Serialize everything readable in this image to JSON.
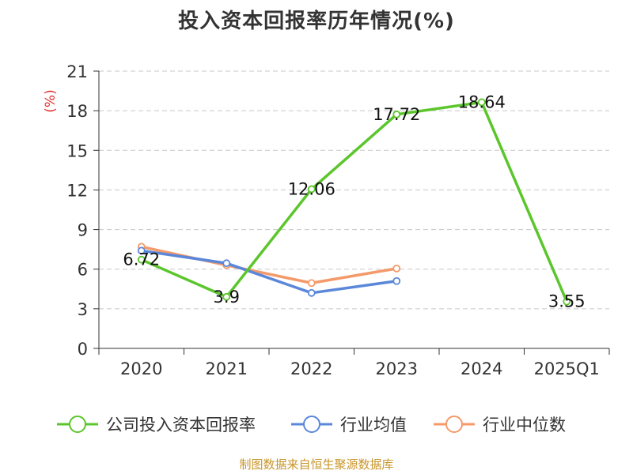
{
  "chart_data": {
    "type": "line",
    "title": "投入资本回报率历年情况(%)",
    "ylabel": "(%)",
    "xlabel": "",
    "categories": [
      "2020",
      "2021",
      "2022",
      "2023",
      "2024",
      "2025Q1"
    ],
    "yticks": [
      0,
      3,
      6,
      9,
      12,
      15,
      18,
      21
    ],
    "ylim": [
      0,
      21
    ],
    "grid": true,
    "legend_position": "bottom",
    "series": [
      {
        "name": "公司投入资本回报率",
        "color": "#5bc62b",
        "values": [
          6.72,
          3.9,
          12.06,
          17.72,
          18.64,
          3.55
        ],
        "labels": [
          "6.72",
          "3.9",
          "12.06",
          "17.72",
          "18.64",
          "3.55"
        ]
      },
      {
        "name": "行业均值",
        "color": "#5a87d9",
        "values": [
          7.4,
          6.45,
          4.2,
          5.1,
          null,
          null
        ]
      },
      {
        "name": "行业中位数",
        "color": "#f49a6a",
        "values": [
          7.7,
          6.3,
          4.95,
          6.05,
          null,
          null
        ]
      }
    ]
  },
  "source": "制图数据来自恒生聚源数据库"
}
